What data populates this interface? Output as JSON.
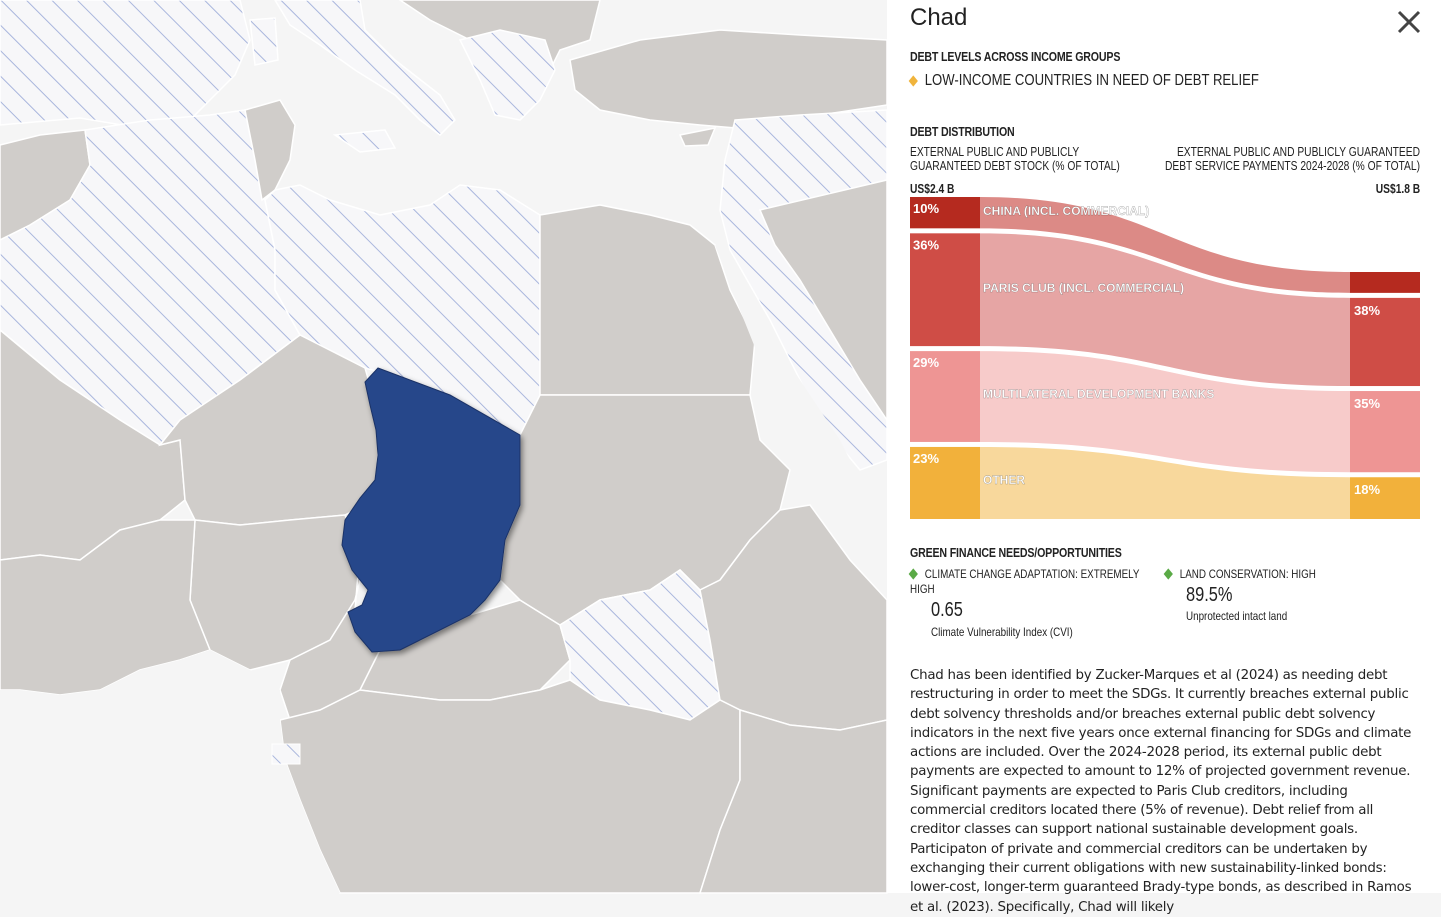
{
  "country": "Chad",
  "income_group": {
    "heading": "DEBT LEVELS ACROSS INCOME GROUPS",
    "label": "LOW-INCOME COUNTRIES IN NEED OF DEBT RELIEF",
    "marker_color": "#f0b43c"
  },
  "debt_distribution": {
    "heading": "DEBT DISTRIBUTION",
    "left_header_line1": "EXTERNAL PUBLIC AND PUBLICLY",
    "left_header_line2": "GUARANTEED DEBT STOCK (% OF TOTAL)",
    "right_header_line1": "EXTERNAL PUBLIC AND PUBLICLY GUARANTEED",
    "right_header_line2": "DEBT SERVICE PAYMENTS 2024-2028 (% OF TOTAL)",
    "left_total": "US$2.4 B",
    "right_total": "US$1.8 B"
  },
  "chart_data": {
    "type": "sankey",
    "categories": [
      "CHINA (INCL. COMMERCIAL)",
      "PARIS CLUB (INCL. COMMERCIAL)",
      "MULTILATERAL DEVELOPMENT BANKS",
      "OTHER"
    ],
    "debt_stock_pct": [
      10,
      36,
      29,
      23
    ],
    "debt_service_pct": [
      9,
      38,
      35,
      18
    ],
    "debt_stock_labels": [
      "10%",
      "36%",
      "29%",
      "23%"
    ],
    "debt_service_labels": [
      "",
      "38%",
      "35%",
      "18%"
    ],
    "colors": [
      "#b52a1f",
      "#cf4d46",
      "#ee9594",
      "#f2b13b"
    ],
    "flow_colors": [
      "#dc8a86",
      "#e6a5a4",
      "#f7cbca",
      "#f8d89c"
    ]
  },
  "green_finance": {
    "heading": "GREEN FINANCE NEEDS/OPPORTUNITIES",
    "item1_label_line1": "CLIMATE CHANGE ADAPTATION: EXTREMELY",
    "item1_label_line2": "HIGH",
    "item1_value": "0.65",
    "item1_caption": "Climate Vulnerability Index (CVI)",
    "item2_label": "LAND CONSERVATION: HIGH",
    "item2_value": "89.5%",
    "item2_caption": "Unprotected intact land",
    "marker_color": "#5aaa46"
  },
  "description": "Chad has been identified by Zucker-Marques et al (2024) as needing debt restructuring in order to meet the SDGs. It currently breaches external public debt solvency thresholds and/or breaches external public debt solvency indicators in the next five years once external financing for SDGs and climate actions are included. Over the 2024-2028 period, its external public debt payments are expected to amount to 12% of projected government revenue. Significant payments are expected to Paris Club creditors, including commercial creditors located there (5% of revenue). Debt relief from all creditor classes can support national sustainable development goals. Participaton of private and commercial creditors can be undertaken by exchanging their current obligations with new sustainability-linked bonds: lower-cost, longer-term guaranteed Brady-type bonds, as described in Ramos et al. (2023). Specifically, Chad will likely",
  "map_colors": {
    "land": "#d0cdca",
    "water": "#f5f5f5",
    "hatch": "#a9b6dd",
    "selected": "#26478a",
    "border": "#ffffff"
  }
}
